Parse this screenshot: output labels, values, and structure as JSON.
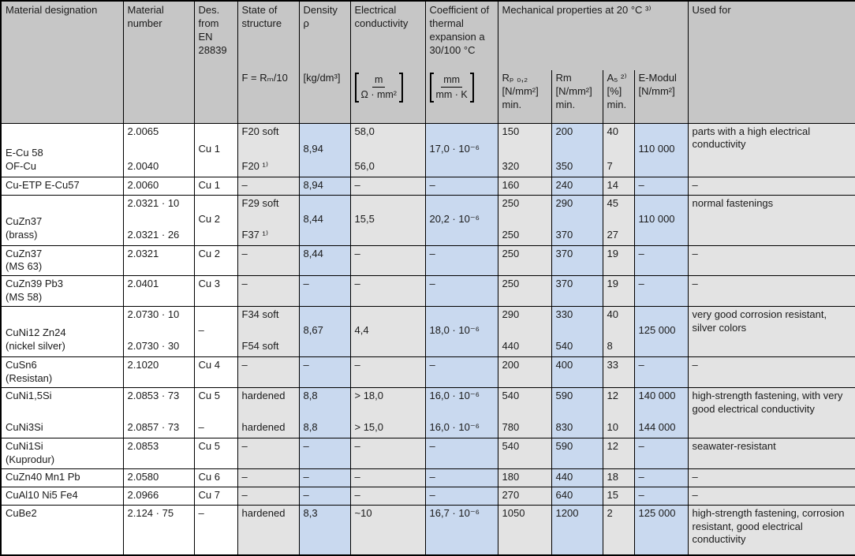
{
  "table": {
    "headers": {
      "designation": "Material designation",
      "number": "Material number",
      "des_en": "Des. from EN 28839",
      "state": {
        "title": "State of structure",
        "unit": "F = Rₘ/10"
      },
      "density": {
        "title": "Density ρ",
        "unit": "[kg/dm³]"
      },
      "conductivity": {
        "title": "Electrical conductivity",
        "unit_num": "m",
        "unit_den": "Ω · mm²"
      },
      "expansion": {
        "title": "Coefficient of thermal expansion a 30/100 °C",
        "unit_num": "mm",
        "unit_den": "mm · K"
      },
      "mechanical": {
        "title": "Mechanical properties at 20 °C ³⁾",
        "sub": [
          {
            "title": "Rₚ ₀,₂",
            "unit": "[N/mm²]",
            "min": "min."
          },
          {
            "title": "Rm",
            "unit": "[N/mm²]",
            "min": "min."
          },
          {
            "title": "A₅ ²⁾",
            "unit": "[%]",
            "min": "min."
          },
          {
            "title": "E-Modul",
            "unit": "[N/mm²]",
            "min": ""
          }
        ]
      },
      "used_for": "Used for"
    },
    "rows": [
      {
        "designation": [
          "E-Cu 58",
          "OF-Cu"
        ],
        "des_align": "end",
        "number": [
          "2.0065",
          "2.0040"
        ],
        "des_en": [
          "Cu 1"
        ],
        "state": [
          "F20 soft",
          "F20 ¹⁾"
        ],
        "density": [
          "8,94"
        ],
        "conductivity": [
          "58,0",
          "56,0"
        ],
        "expansion": [
          "17,0 · 10⁻⁶"
        ],
        "rp02": [
          "150",
          "320"
        ],
        "rm": [
          "200",
          "350"
        ],
        "a5": [
          "40",
          "7"
        ],
        "emodul": [
          "110 000"
        ],
        "used_for": "parts with a high electrical conductivity",
        "size": "xl",
        "align": "split"
      },
      {
        "designation": [
          "Cu-ETP E-Cu57"
        ],
        "number": [
          "2.0060"
        ],
        "des_en": [
          "Cu 1"
        ],
        "state": [
          "–"
        ],
        "density": [
          "8,94"
        ],
        "conductivity": [
          "–"
        ],
        "expansion": [
          "–"
        ],
        "rp02": [
          "160"
        ],
        "rm": [
          "240"
        ],
        "a5": [
          "14"
        ],
        "emodul": [
          "–"
        ],
        "used_for": "–",
        "size": "s",
        "align": "top"
      },
      {
        "designation": [
          "CuZn37",
          "(brass)"
        ],
        "des_align": "end",
        "number": [
          "2.0321 · 10",
          "2.0321 · 26"
        ],
        "des_en": [
          "Cu 2"
        ],
        "state": [
          "F29 soft",
          "F37 ¹⁾"
        ],
        "density": [
          "8,44"
        ],
        "conductivity": [
          "15,5"
        ],
        "expansion": [
          "20,2 · 10⁻⁶"
        ],
        "rp02": [
          "250",
          "250"
        ],
        "rm": [
          "290",
          "370"
        ],
        "a5": [
          "45",
          "27"
        ],
        "emodul": [
          "110 000"
        ],
        "used_for": "normal fastenings",
        "size": "l",
        "align": "split"
      },
      {
        "designation": [
          "CuZn37",
          "(MS 63)"
        ],
        "number": [
          "2.0321"
        ],
        "des_en": [
          "Cu 2"
        ],
        "state": [
          "–"
        ],
        "density": [
          "8,44"
        ],
        "conductivity": [
          "–"
        ],
        "expansion": [
          "–"
        ],
        "rp02": [
          "250"
        ],
        "rm": [
          "370"
        ],
        "a5": [
          "19"
        ],
        "emodul": [
          "–"
        ],
        "used_for": "–",
        "size": "m",
        "align": "top"
      },
      {
        "designation": [
          "CuZn39 Pb3",
          "(MS 58)"
        ],
        "number": [
          "2.0401"
        ],
        "des_en": [
          "Cu 3"
        ],
        "state": [
          "–"
        ],
        "density": [
          "–"
        ],
        "conductivity": [
          "–"
        ],
        "expansion": [
          "–"
        ],
        "rp02": [
          "250"
        ],
        "rm": [
          "370"
        ],
        "a5": [
          "19"
        ],
        "emodul": [
          "–"
        ],
        "used_for": "–",
        "size": "m",
        "align": "top"
      },
      {
        "designation": [
          "CuNi12 Zn24",
          "(nickel silver)"
        ],
        "des_align": "end",
        "number": [
          "2.0730 · 10",
          "2.0730 · 30"
        ],
        "des_en": [
          "–"
        ],
        "state": [
          "F34 soft",
          "F54 soft"
        ],
        "density": [
          "8,67"
        ],
        "conductivity": [
          "4,4"
        ],
        "expansion": [
          "18,0 · 10⁻⁶"
        ],
        "rp02": [
          "290",
          "440"
        ],
        "rm": [
          "330",
          "540"
        ],
        "a5": [
          "40",
          "8"
        ],
        "emodul": [
          "125 000"
        ],
        "used_for": "very good corrosion resistant, silver colors",
        "size": "l",
        "align": "split"
      },
      {
        "designation": [
          "CuSn6",
          "(Resistan)"
        ],
        "number": [
          "2.1020"
        ],
        "des_en": [
          "Cu 4"
        ],
        "state": [
          "–"
        ],
        "density": [
          "–"
        ],
        "conductivity": [
          "–"
        ],
        "expansion": [
          "–"
        ],
        "rp02": [
          "200"
        ],
        "rm": [
          "400"
        ],
        "a5": [
          "33"
        ],
        "emodul": [
          "–"
        ],
        "used_for": "–",
        "size": "m",
        "align": "top"
      },
      {
        "designation": [
          "CuNi1,5Si",
          "CuNi3Si"
        ],
        "des_align": "between",
        "number": [
          "2.0853 · 73",
          "2.0857 · 73"
        ],
        "des_en": [
          "Cu 5",
          "–"
        ],
        "state": [
          "hardened",
          "hardened"
        ],
        "density": [
          "8,8",
          "8,8"
        ],
        "conductivity": [
          "> 18,0",
          "> 15,0"
        ],
        "expansion": [
          "16,0 · 10⁻⁶",
          "16,0 · 10⁻⁶"
        ],
        "rp02": [
          "540",
          "780"
        ],
        "rm": [
          "590",
          "830"
        ],
        "a5": [
          "12",
          "10"
        ],
        "emodul": [
          "140 000",
          "144 000"
        ],
        "used_for": "high-strength fastening, with very good electrical conductivity",
        "size": "l",
        "align": "split"
      },
      {
        "designation": [
          "CuNi1Si",
          "(Kuprodur)"
        ],
        "number": [
          "2.0853"
        ],
        "des_en": [
          "Cu 5"
        ],
        "state": [
          "–"
        ],
        "density": [
          "–"
        ],
        "conductivity": [
          "–"
        ],
        "expansion": [
          "–"
        ],
        "rp02": [
          "540"
        ],
        "rm": [
          "590"
        ],
        "a5": [
          "12"
        ],
        "emodul": [
          "–"
        ],
        "used_for": "seawater-resistant",
        "size": "m",
        "align": "top"
      },
      {
        "designation": [
          "CuZn40 Mn1 Pb"
        ],
        "number": [
          "2.0580"
        ],
        "des_en": [
          "Cu 6"
        ],
        "state": [
          "–"
        ],
        "density": [
          "–"
        ],
        "conductivity": [
          "–"
        ],
        "expansion": [
          "–"
        ],
        "rp02": [
          "180"
        ],
        "rm": [
          "440"
        ],
        "a5": [
          "18"
        ],
        "emodul": [
          "–"
        ],
        "used_for": "–",
        "size": "s",
        "align": "top"
      },
      {
        "designation": [
          "CuAl10 Ni5 Fe4"
        ],
        "number": [
          "2.0966"
        ],
        "des_en": [
          "Cu 7"
        ],
        "state": [
          "–"
        ],
        "density": [
          "–"
        ],
        "conductivity": [
          "–"
        ],
        "expansion": [
          "–"
        ],
        "rp02": [
          "270"
        ],
        "rm": [
          "640"
        ],
        "a5": [
          "15"
        ],
        "emodul": [
          "–"
        ],
        "used_for": "–",
        "size": "s",
        "align": "top"
      },
      {
        "designation": [
          "CuBe2"
        ],
        "number": [
          "2.124 · 75"
        ],
        "des_en": [
          "–"
        ],
        "state": [
          "hardened"
        ],
        "density": [
          "8,3"
        ],
        "conductivity": [
          "~10"
        ],
        "expansion": [
          "16,7 · 10⁻⁶"
        ],
        "rp02": [
          "1050"
        ],
        "rm": [
          "1200"
        ],
        "a5": [
          "2"
        ],
        "emodul": [
          "125 000"
        ],
        "used_for": "high-strength fastening, corrosion resistant, good electrical conductivity",
        "size": "l",
        "align": "top"
      }
    ]
  },
  "colors": {
    "header_bg": "#c6c6c6",
    "gray_col_bg": "#e3e3e3",
    "blue_col_bg": "#c9d9ef",
    "border": "#000000"
  }
}
